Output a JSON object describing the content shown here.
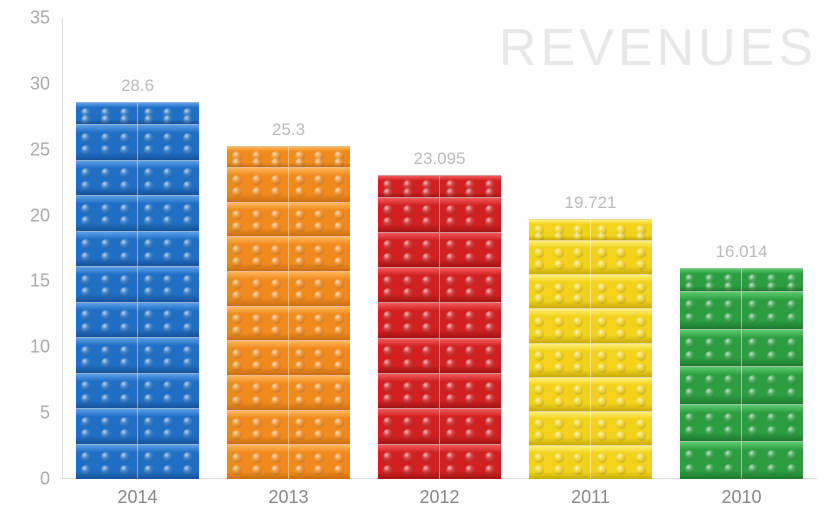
{
  "chart": {
    "type": "bar",
    "watermark": "REVENUES",
    "watermark_color": "#e8e8e8",
    "watermark_fontsize": 52,
    "background_color": "#ffffff",
    "ymax": 35,
    "ymin": 0,
    "ytick_step": 5,
    "yticks": [
      0,
      5,
      10,
      15,
      20,
      25,
      30,
      35
    ],
    "axis_label_color": "#aaaaaa",
    "axis_label_fontsize": 18,
    "value_label_color": "#bbbbbb",
    "value_label_fontsize": 17,
    "axis_line_color": "#dddddd",
    "bar_width_pct": 82,
    "brick_units_per_ytick": 1,
    "bars": [
      {
        "category": "2014",
        "value": 28.6,
        "value_label": "28.6",
        "bricks": 11,
        "base_color": "#1f6fc4",
        "dark_color": "#15539a",
        "highlight_color": "#5a9fe8"
      },
      {
        "category": "2013",
        "value": 25.3,
        "value_label": "25.3",
        "bricks": 10,
        "base_color": "#f08a1d",
        "dark_color": "#c96e0e",
        "highlight_color": "#ffb65a"
      },
      {
        "category": "2012",
        "value": 23.095,
        "value_label": "23.095",
        "bricks": 9,
        "base_color": "#d22020",
        "dark_color": "#a01414",
        "highlight_color": "#f25a5a"
      },
      {
        "category": "2011",
        "value": 19.721,
        "value_label": "19.721",
        "bricks": 8,
        "base_color": "#f2d21a",
        "dark_color": "#c9ab0a",
        "highlight_color": "#fff07a"
      },
      {
        "category": "2010",
        "value": 16.014,
        "value_label": "16.014",
        "bricks": 6,
        "base_color": "#2b9e3f",
        "dark_color": "#1e7a2e",
        "highlight_color": "#5acb6f"
      }
    ]
  }
}
